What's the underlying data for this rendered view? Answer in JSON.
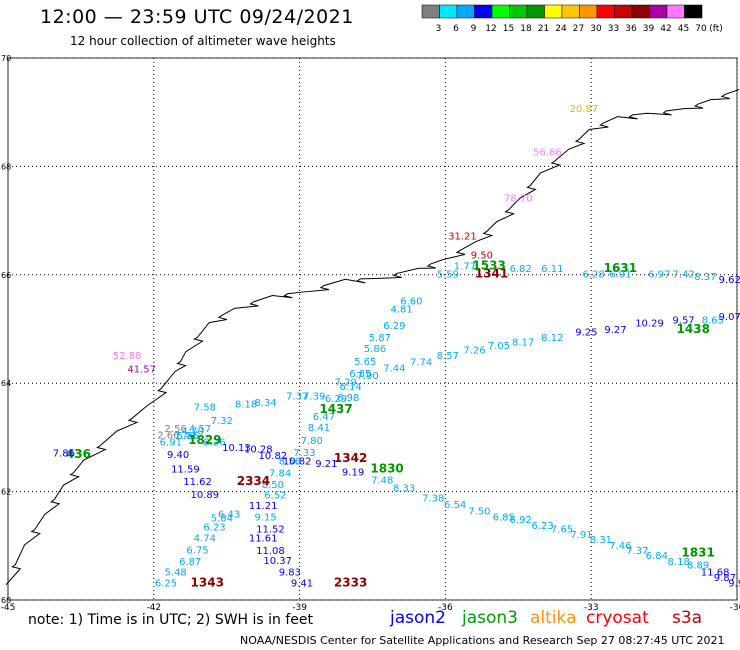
{
  "title": "12:00 — 23:59 UTC 09/24/2021",
  "subtitle": "12 hour collection of altimeter wave heights",
  "note": "note: 1) Time is in UTC; 2) SWH is in feet",
  "credit": "NOAA/NESDIS Center for Satellite Applications and Research    Sep 27 08:27:45 UTC 2021",
  "colorbar": {
    "unit": "(ft)",
    "labels": [
      "3",
      "6",
      "9",
      "12",
      "15",
      "18",
      "21",
      "24",
      "27",
      "30",
      "33",
      "36",
      "39",
      "42",
      "45",
      "70"
    ],
    "colors": [
      "#7f7f7f",
      "#00e8ff",
      "#00aaff",
      "#0000ff",
      "#00ff00",
      "#00c800",
      "#009600",
      "#ffff00",
      "#ffc800",
      "#ff9600",
      "#ff0000",
      "#c80000",
      "#8c0000",
      "#aa00aa",
      "#ff78ff",
      "#000000"
    ]
  },
  "satellites": [
    {
      "name": "jason2",
      "color": "#0000ff"
    },
    {
      "name": "jason3",
      "color": "#00a000"
    },
    {
      "name": "altika",
      "color": "#ff9600"
    },
    {
      "name": "cryosat",
      "color": "#ff0000"
    },
    {
      "name": "s3a",
      "color": "#c80000"
    }
  ],
  "chart_data": {
    "type": "scatter",
    "title": "12:00 — 23:59 UTC 09/24/2021",
    "subtitle": "12 hour collection of altimeter wave heights",
    "xlabel": "",
    "ylabel": "",
    "xlim": [
      -45,
      -30
    ],
    "ylim": [
      60,
      70
    ],
    "x_ticks": [
      "-45",
      "-42",
      "-39",
      "-36",
      "-33",
      "-30"
    ],
    "y_ticks": [
      "60",
      "62",
      "64",
      "66",
      "68",
      "70"
    ],
    "grid": true,
    "points": [
      {
        "x": -33.15,
        "y": 69.0,
        "label": "20.87",
        "color": "#e6b400"
      },
      {
        "x": -33.9,
        "y": 68.2,
        "label": "56.86",
        "color": "#ff78ff"
      },
      {
        "x": -34.5,
        "y": 67.35,
        "label": "78.70",
        "color": "#ff78ff"
      },
      {
        "x": -35.65,
        "y": 66.65,
        "label": "31.21",
        "color": "#c80000"
      },
      {
        "x": -35.25,
        "y": 66.3,
        "label": "9.50",
        "color": "#c80000"
      },
      {
        "x": -35.6,
        "y": 66.1,
        "label": "1.77",
        "color": "#00aaff"
      },
      {
        "x": -35.05,
        "y": 65.95,
        "label": "1341",
        "color": "#8c0000",
        "bold": true
      },
      {
        "x": -35.1,
        "y": 66.1,
        "label": "1533",
        "color": "#009600",
        "bold": true
      },
      {
        "x": -35.95,
        "y": 65.95,
        "label": "5.59",
        "color": "#00aaff"
      },
      {
        "x": -34.45,
        "y": 66.05,
        "label": "6.82",
        "color": "#00aaff"
      },
      {
        "x": -33.8,
        "y": 66.05,
        "label": "6.11",
        "color": "#00aaff"
      },
      {
        "x": -32.4,
        "y": 66.05,
        "label": "1631",
        "color": "#009600",
        "bold": true
      },
      {
        "x": -32.95,
        "y": 65.95,
        "label": "6.28",
        "color": "#00aaff"
      },
      {
        "x": -32.4,
        "y": 65.95,
        "label": "6.91",
        "color": "#00aaff"
      },
      {
        "x": -31.6,
        "y": 65.95,
        "label": "6.97",
        "color": "#00aaff"
      },
      {
        "x": -31.1,
        "y": 65.95,
        "label": "7.42",
        "color": "#00aaff"
      },
      {
        "x": -30.65,
        "y": 65.9,
        "label": "8.37",
        "color": "#00aaff"
      },
      {
        "x": -30.15,
        "y": 65.85,
        "label": "9.62",
        "color": "#0000ff"
      },
      {
        "x": -36.7,
        "y": 65.45,
        "label": "6.60",
        "color": "#00aaff"
      },
      {
        "x": -36.9,
        "y": 65.3,
        "label": "4.81",
        "color": "#00aaff"
      },
      {
        "x": -37.05,
        "y": 65.0,
        "label": "6.29",
        "color": "#00aaff"
      },
      {
        "x": -37.35,
        "y": 64.78,
        "label": "5.87",
        "color": "#00aaff"
      },
      {
        "x": -37.45,
        "y": 64.58,
        "label": "5.86",
        "color": "#00aaff"
      },
      {
        "x": -37.65,
        "y": 64.34,
        "label": "5.65",
        "color": "#00aaff"
      },
      {
        "x": -37.75,
        "y": 64.11,
        "label": "6.85",
        "color": "#00aaff"
      },
      {
        "x": -37.95,
        "y": 63.87,
        "label": "6.14",
        "color": "#00aaff"
      },
      {
        "x": -38.0,
        "y": 63.67,
        "label": "6.98",
        "color": "#00aaff"
      },
      {
        "x": -38.25,
        "y": 63.65,
        "label": "6.29",
        "color": "#00aaff"
      },
      {
        "x": -38.25,
        "y": 63.45,
        "label": "1437",
        "color": "#009600",
        "bold": true
      },
      {
        "x": -38.5,
        "y": 63.32,
        "label": "6.47",
        "color": "#00aaff"
      },
      {
        "x": -38.6,
        "y": 63.12,
        "label": "8.41",
        "color": "#00aaff"
      },
      {
        "x": -38.75,
        "y": 62.88,
        "label": "7.80",
        "color": "#00aaff"
      },
      {
        "x": -38.9,
        "y": 62.66,
        "label": "7.33",
        "color": "#00aaff"
      },
      {
        "x": -39.2,
        "y": 62.5,
        "label": "8.56",
        "color": "#00aaff"
      },
      {
        "x": -39.4,
        "y": 62.28,
        "label": "7.84",
        "color": "#00aaff"
      },
      {
        "x": -39.55,
        "y": 62.07,
        "label": "8.50",
        "color": "#00aaff"
      },
      {
        "x": -39.5,
        "y": 61.87,
        "label": "6.52",
        "color": "#00aaff"
      },
      {
        "x": -39.75,
        "y": 61.68,
        "label": "11.21",
        "color": "#0000ff"
      },
      {
        "x": -39.7,
        "y": 61.47,
        "label": "9.15",
        "color": "#00aaff"
      },
      {
        "x": -39.6,
        "y": 61.25,
        "label": "11.52",
        "color": "#0000ff"
      },
      {
        "x": -39.75,
        "y": 61.08,
        "label": "11.61",
        "color": "#0000ff"
      },
      {
        "x": -39.6,
        "y": 60.85,
        "label": "11.08",
        "color": "#0000ff"
      },
      {
        "x": -39.45,
        "y": 60.66,
        "label": "10.37",
        "color": "#0000ff"
      },
      {
        "x": -39.2,
        "y": 60.45,
        "label": "9.83",
        "color": "#0000ff"
      },
      {
        "x": -38.95,
        "y": 60.25,
        "label": "9.41",
        "color": "#0000ff"
      },
      {
        "x": -37.95,
        "y": 60.25,
        "label": "2333",
        "color": "#8c0000",
        "bold": true
      },
      {
        "x": -40.9,
        "y": 60.25,
        "label": "1343",
        "color": "#8c0000",
        "bold": true
      },
      {
        "x": -41.75,
        "y": 60.25,
        "label": "6.25",
        "color": "#00aaff"
      },
      {
        "x": -41.55,
        "y": 60.45,
        "label": "5.48",
        "color": "#00aaff"
      },
      {
        "x": -41.25,
        "y": 60.65,
        "label": "6.87",
        "color": "#00aaff"
      },
      {
        "x": -41.1,
        "y": 60.86,
        "label": "6.75",
        "color": "#00aaff"
      },
      {
        "x": -40.95,
        "y": 61.08,
        "label": "4.74",
        "color": "#00aaff"
      },
      {
        "x": -40.75,
        "y": 61.28,
        "label": "6.23",
        "color": "#00aaff"
      },
      {
        "x": -40.6,
        "y": 61.45,
        "label": "5.84",
        "color": "#00aaff"
      },
      {
        "x": -40.45,
        "y": 61.52,
        "label": "6.43",
        "color": "#00aaff"
      },
      {
        "x": -40.95,
        "y": 61.88,
        "label": "10.89",
        "color": "#0000ff"
      },
      {
        "x": -41.1,
        "y": 62.12,
        "label": "11.62",
        "color": "#0000ff"
      },
      {
        "x": -39.95,
        "y": 62.12,
        "label": "2334",
        "color": "#8c0000",
        "bold": true
      },
      {
        "x": -41.35,
        "y": 62.35,
        "label": "11.59",
        "color": "#0000ff"
      },
      {
        "x": -41.5,
        "y": 62.62,
        "label": "9.40",
        "color": "#0000ff"
      },
      {
        "x": -41.35,
        "y": 62.97,
        "label": "7.43",
        "color": "#00aaff"
      },
      {
        "x": -41.65,
        "y": 62.85,
        "label": "6.91",
        "color": "#00aaff"
      },
      {
        "x": -40.75,
        "y": 62.85,
        "label": "8.26",
        "color": "#00aaff"
      },
      {
        "x": -40.3,
        "y": 62.75,
        "label": "10.13",
        "color": "#0000ff"
      },
      {
        "x": -39.85,
        "y": 62.72,
        "label": "10.28",
        "color": "#0000ff"
      },
      {
        "x": -39.55,
        "y": 62.6,
        "label": "10.82",
        "color": "#0000ff"
      },
      {
        "x": -39.05,
        "y": 62.5,
        "label": "10.82",
        "color": "#0000ff"
      },
      {
        "x": -38.45,
        "y": 62.45,
        "label": "9.21",
        "color": "#0000ff"
      },
      {
        "x": -37.95,
        "y": 62.55,
        "label": "1342",
        "color": "#8c0000",
        "bold": true
      },
      {
        "x": -37.9,
        "y": 62.3,
        "label": "9.19",
        "color": "#0000ff"
      },
      {
        "x": -37.2,
        "y": 62.35,
        "label": "1830",
        "color": "#009600",
        "bold": true
      },
      {
        "x": -37.3,
        "y": 62.15,
        "label": "7.48",
        "color": "#00aaff"
      },
      {
        "x": -36.85,
        "y": 62.0,
        "label": "8.33",
        "color": "#00aaff"
      },
      {
        "x": -36.25,
        "y": 61.82,
        "label": "7.38",
        "color": "#00aaff"
      },
      {
        "x": -35.8,
        "y": 61.7,
        "label": "6.54",
        "color": "#00aaff"
      },
      {
        "x": -35.3,
        "y": 61.58,
        "label": "7.50",
        "color": "#00aaff"
      },
      {
        "x": -34.8,
        "y": 61.47,
        "label": "6.85",
        "color": "#00aaff"
      },
      {
        "x": -34.45,
        "y": 61.42,
        "label": "6.92",
        "color": "#00aaff"
      },
      {
        "x": -34.0,
        "y": 61.31,
        "label": "6.23",
        "color": "#00aaff"
      },
      {
        "x": -33.6,
        "y": 61.25,
        "label": "7.65",
        "color": "#00aaff"
      },
      {
        "x": -33.2,
        "y": 61.14,
        "label": "7.91",
        "color": "#00aaff"
      },
      {
        "x": -32.8,
        "y": 61.05,
        "label": "8.31",
        "color": "#00aaff"
      },
      {
        "x": -32.4,
        "y": 60.94,
        "label": "7.46",
        "color": "#00aaff"
      },
      {
        "x": -32.05,
        "y": 60.85,
        "label": "7.37",
        "color": "#00aaff"
      },
      {
        "x": -31.65,
        "y": 60.76,
        "label": "6.84",
        "color": "#00aaff"
      },
      {
        "x": -30.8,
        "y": 60.8,
        "label": "1831",
        "color": "#009600",
        "bold": true
      },
      {
        "x": -31.2,
        "y": 60.65,
        "label": "8.18",
        "color": "#00aaff"
      },
      {
        "x": -30.8,
        "y": 60.58,
        "label": "8.89",
        "color": "#00aaff"
      },
      {
        "x": -30.45,
        "y": 60.45,
        "label": "11.68",
        "color": "#0000ff"
      },
      {
        "x": -30.25,
        "y": 60.35,
        "label": "9.87",
        "color": "#0000ff"
      },
      {
        "x": -29.95,
        "y": 60.25,
        "label": "9.93",
        "color": "#0000ff"
      },
      {
        "x": -40.95,
        "y": 63.5,
        "label": "7.58",
        "color": "#00aaff"
      },
      {
        "x": -40.1,
        "y": 63.55,
        "label": "8.18",
        "color": "#00aaff"
      },
      {
        "x": -39.7,
        "y": 63.58,
        "label": "8.34",
        "color": "#00aaff"
      },
      {
        "x": -39.05,
        "y": 63.7,
        "label": "7.37",
        "color": "#00aaff"
      },
      {
        "x": -38.7,
        "y": 63.7,
        "label": "7.39",
        "color": "#00aaff"
      },
      {
        "x": -38.05,
        "y": 63.96,
        "label": "7.29",
        "color": "#00aaff"
      },
      {
        "x": -37.6,
        "y": 64.08,
        "label": "7.90",
        "color": "#00aaff"
      },
      {
        "x": -37.05,
        "y": 64.22,
        "label": "7.44",
        "color": "#00aaff"
      },
      {
        "x": -36.5,
        "y": 64.33,
        "label": "7.74",
        "color": "#00aaff"
      },
      {
        "x": -35.95,
        "y": 64.45,
        "label": "8.57",
        "color": "#00aaff"
      },
      {
        "x": -35.4,
        "y": 64.55,
        "label": "7.26",
        "color": "#00aaff"
      },
      {
        "x": -34.9,
        "y": 64.63,
        "label": "7.05",
        "color": "#00aaff"
      },
      {
        "x": -34.4,
        "y": 64.7,
        "label": "8.17",
        "color": "#00aaff"
      },
      {
        "x": -33.8,
        "y": 64.78,
        "label": "8.12",
        "color": "#00aaff"
      },
      {
        "x": -33.1,
        "y": 64.88,
        "label": "9.25",
        "color": "#0000ff"
      },
      {
        "x": -32.5,
        "y": 64.93,
        "label": "9.27",
        "color": "#0000ff"
      },
      {
        "x": -31.8,
        "y": 65.05,
        "label": "10.29",
        "color": "#0000ff"
      },
      {
        "x": -31.1,
        "y": 65.1,
        "label": "9.57",
        "color": "#0000ff"
      },
      {
        "x": -30.9,
        "y": 64.93,
        "label": "1438",
        "color": "#009600",
        "bold": true
      },
      {
        "x": -30.5,
        "y": 65.1,
        "label": "8.65",
        "color": "#00aaff"
      },
      {
        "x": -30.15,
        "y": 65.17,
        "label": "9.07",
        "color": "#0000ff"
      },
      {
        "x": -29.7,
        "y": 65.22,
        "label": "9.1",
        "color": "#0000ff"
      },
      {
        "x": -41.05,
        "y": 63.1,
        "label": "4.57",
        "color": "#00aaff"
      },
      {
        "x": -40.6,
        "y": 63.25,
        "label": "7.32",
        "color": "#00aaff"
      },
      {
        "x": -41.2,
        "y": 63.05,
        "label": "4.70",
        "color": "#00aaff"
      },
      {
        "x": -41.55,
        "y": 63.1,
        "label": "2.56",
        "color": "#7f7f7f"
      },
      {
        "x": -41.7,
        "y": 62.98,
        "label": "2.66",
        "color": "#7f7f7f"
      },
      {
        "x": -41.3,
        "y": 62.97,
        "label": "5.36",
        "color": "#00aaff"
      },
      {
        "x": -40.95,
        "y": 62.88,
        "label": "1829",
        "color": "#009600",
        "bold": true
      },
      {
        "x": -43.55,
        "y": 62.62,
        "label": "436",
        "color": "#009600",
        "bold": true
      },
      {
        "x": -43.85,
        "y": 62.65,
        "label": "7.86",
        "color": "#0000ff"
      },
      {
        "x": -42.55,
        "y": 64.45,
        "label": "52.88",
        "color": "#ff78ff"
      },
      {
        "x": -42.25,
        "y": 64.2,
        "label": "41.57",
        "color": "#aa00aa"
      }
    ]
  }
}
